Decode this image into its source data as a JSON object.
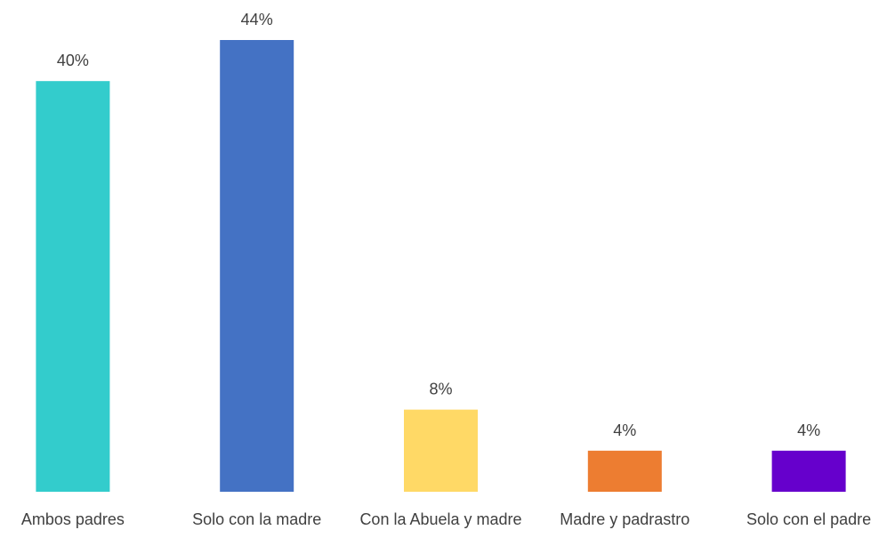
{
  "chart_data": {
    "type": "bar",
    "categories": [
      "Ambos padres",
      "Solo con la madre",
      "Con la Abuela y madre",
      "Madre y padrastro",
      "Solo con el padre"
    ],
    "values": [
      40,
      44,
      8,
      4,
      4
    ],
    "value_labels": [
      "40%",
      "44%",
      "8%",
      "4%",
      "4%"
    ],
    "colors": [
      "#33cccc",
      "#4472c4",
      "#ffd966",
      "#ed7d31",
      "#6600cc"
    ],
    "grid": false
  }
}
